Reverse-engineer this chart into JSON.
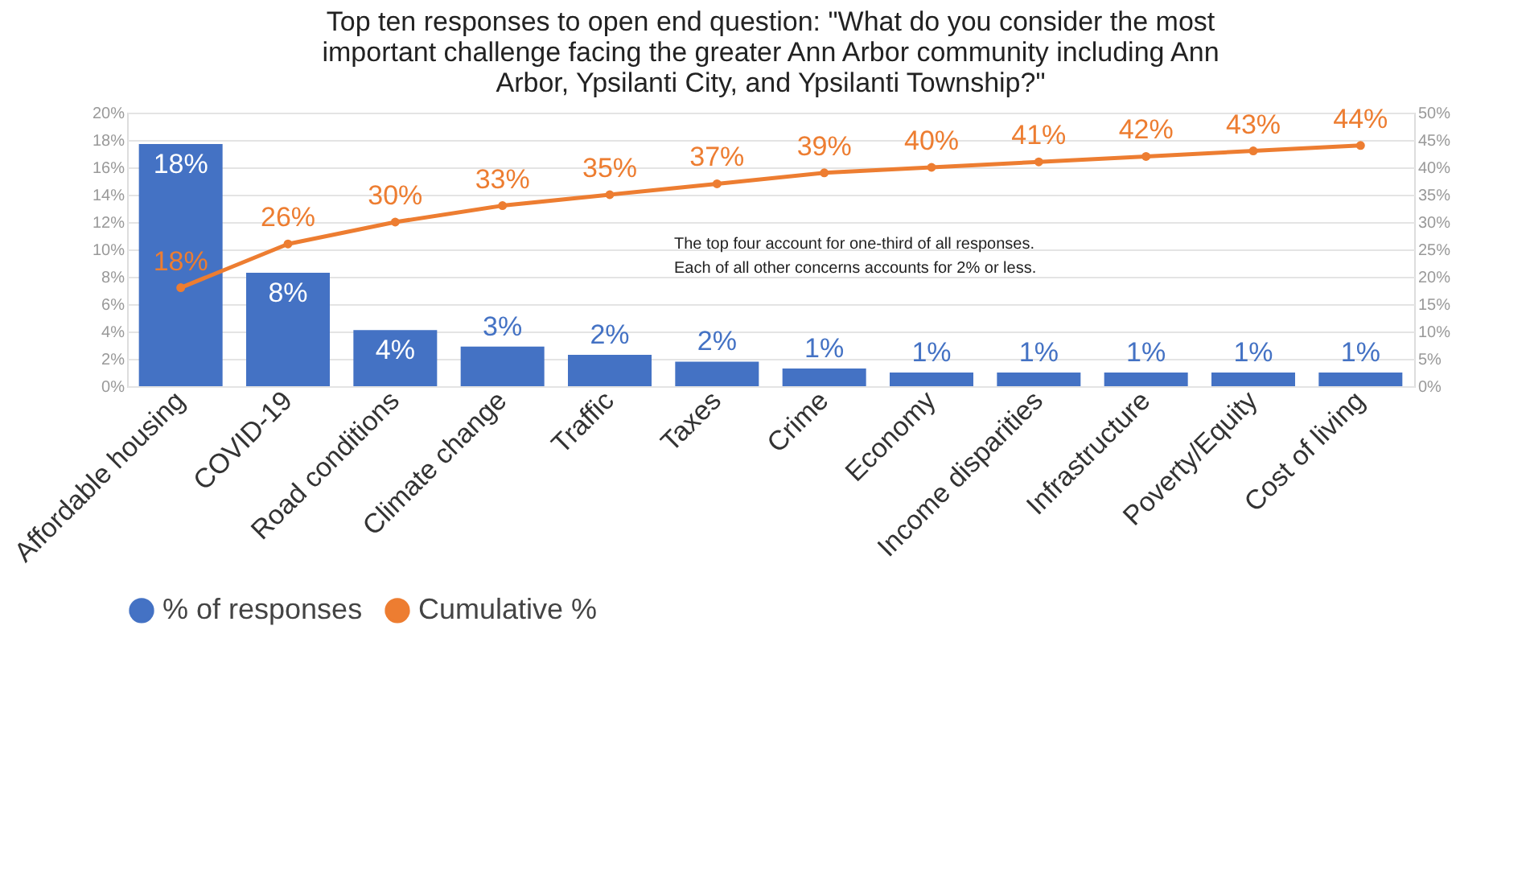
{
  "chart_data": {
    "type": "bar",
    "title": "Top ten responses to open end question: \"What do you consider the most important challenge facing the greater Ann Arbor community including Ann Arbor, Ypsilanti City, and Ypsilanti Township?\"",
    "categories": [
      "Affordable housing",
      "COVID-19",
      "Road conditions",
      "Climate change",
      "Traffic",
      "Taxes",
      "Crime",
      "Economy",
      "Income disparities",
      "Infrastructure",
      "Poverty/Equity",
      "Cost of living"
    ],
    "series": [
      {
        "name": "% of responses",
        "color": "#4472c4",
        "values": [
          17.7,
          8.3,
          4.1,
          2.9,
          2.3,
          1.8,
          1.3,
          1.0,
          1.0,
          1.0,
          1.0,
          1.0
        ],
        "value_labels": [
          "18%",
          "8%",
          "4%",
          "3%",
          "2%",
          "2%",
          "1%",
          "1%",
          "1%",
          "1%",
          "1%",
          "1%"
        ]
      },
      {
        "name": "Cumulative %",
        "type": "line",
        "axis": "y2",
        "color": "#ed7d31",
        "marker": "circle",
        "values": [
          18,
          26,
          30,
          33,
          35,
          37,
          39,
          40,
          41,
          42,
          43,
          44
        ],
        "value_labels": [
          "18%",
          "26%",
          "30%",
          "33%",
          "35%",
          "37%",
          "39%",
          "40%",
          "41%",
          "42%",
          "43%",
          "44%"
        ]
      }
    ],
    "ylim": [
      0,
      20
    ],
    "yticks": [
      {
        "value": 0,
        "label": "0%"
      },
      {
        "value": 2,
        "label": "2%"
      },
      {
        "value": 4,
        "label": "4%"
      },
      {
        "value": 6,
        "label": "6%"
      },
      {
        "value": 8,
        "label": "8%"
      },
      {
        "value": 10,
        "label": "10%"
      },
      {
        "value": 12,
        "label": "12%"
      },
      {
        "value": 14,
        "label": "14%"
      },
      {
        "value": 16,
        "label": "16%"
      },
      {
        "value": 18,
        "label": "18%"
      },
      {
        "value": 20,
        "label": "20%"
      }
    ],
    "y2lim": [
      0,
      50
    ],
    "y2ticks": [
      {
        "value": 0,
        "label": "0%"
      },
      {
        "value": 5,
        "label": "5%"
      },
      {
        "value": 10,
        "label": "10%"
      },
      {
        "value": 15,
        "label": "15%"
      },
      {
        "value": 20,
        "label": "20%"
      },
      {
        "value": 25,
        "label": "25%"
      },
      {
        "value": 30,
        "label": "30%"
      },
      {
        "value": 35,
        "label": "35%"
      },
      {
        "value": 40,
        "label": "40%"
      },
      {
        "value": 45,
        "label": "45%"
      },
      {
        "value": 50,
        "label": "50%"
      }
    ],
    "annotations": [
      "The top four account for one-third of all responses.\nEach of all other concerns accounts for 2% or less."
    ],
    "grid": "y",
    "legend": "bottom"
  }
}
